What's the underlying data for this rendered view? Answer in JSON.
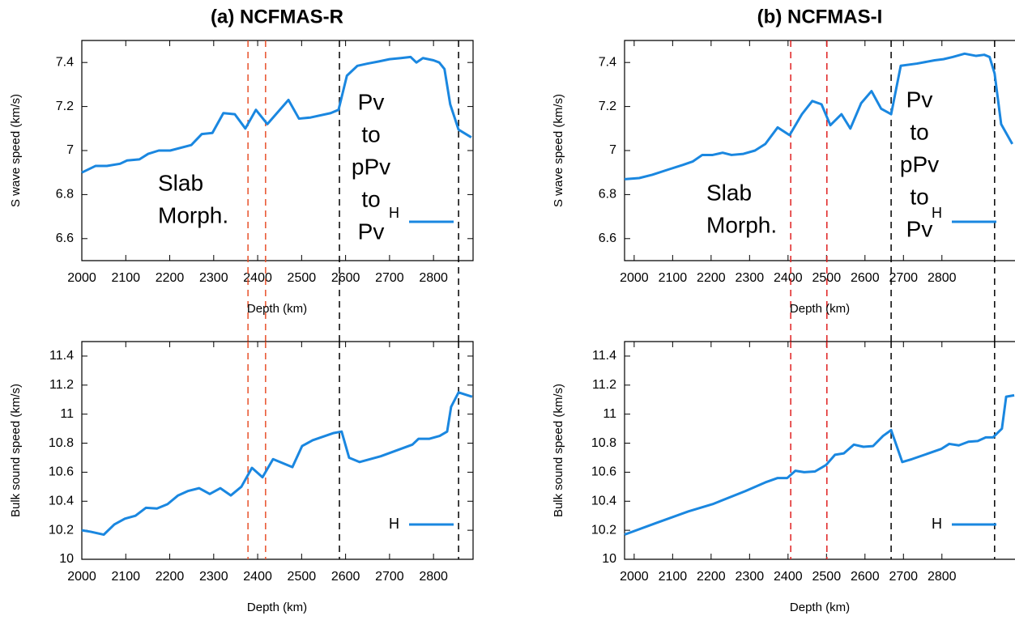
{
  "chart_data": [
    {
      "type": "line",
      "title": "(a) NCFMAS-R",
      "xlabel": "Depth (km)",
      "ylabel": "S wave speed (km/s)",
      "x": [
        2000,
        2031,
        2057,
        2087,
        2103,
        2131,
        2151,
        2175,
        2201,
        2249,
        2273,
        2297,
        2322,
        2348,
        2372,
        2396,
        2422,
        2470,
        2494,
        2520,
        2566,
        2584,
        2603,
        2627,
        2650,
        2676,
        2700,
        2726,
        2748,
        2761,
        2776,
        2800,
        2813,
        2825,
        2838,
        2857,
        2886
      ],
      "series": [
        {
          "name": "H",
          "color": "#1a87e0",
          "values": [
            6.9,
            6.93,
            6.93,
            6.94,
            6.955,
            6.96,
            6.985,
            7.0,
            7.0,
            7.025,
            7.075,
            7.08,
            7.17,
            7.165,
            7.1,
            7.185,
            7.12,
            7.23,
            7.145,
            7.15,
            7.17,
            7.185,
            7.34,
            7.385,
            7.395,
            7.405,
            7.415,
            7.42,
            7.425,
            7.4,
            7.42,
            7.41,
            7.4,
            7.37,
            7.21,
            7.095,
            7.06
          ]
        }
      ],
      "xlim": [
        2000,
        2890
      ],
      "ylim": [
        6.5,
        7.5
      ],
      "xticks": [
        2000,
        2100,
        2200,
        2300,
        2400,
        2500,
        2600,
        2700,
        2800
      ],
      "yticks": [
        6.6,
        6.8,
        7,
        7.2,
        7.4
      ],
      "vlines": [
        {
          "x": 2378,
          "color": "#e8502a"
        },
        {
          "x": 2418,
          "color": "#e8502a"
        },
        {
          "x": 2586,
          "color": "#000000"
        },
        {
          "x": 2857,
          "color": "#000000"
        }
      ],
      "annotations": [
        {
          "lines": [
            "Slab",
            "Morph."
          ]
        },
        {
          "lines": [
            "Pv",
            "to",
            "pPv",
            "to",
            "Pv"
          ]
        }
      ],
      "legend": "lower right"
    },
    {
      "type": "line",
      "xlabel": "Depth (km)",
      "ylabel": "Bulk sound speed (km/s)",
      "x": [
        2000,
        2020,
        2050,
        2074,
        2098,
        2122,
        2146,
        2171,
        2195,
        2219,
        2241,
        2267,
        2291,
        2315,
        2339,
        2363,
        2387,
        2411,
        2435,
        2479,
        2501,
        2525,
        2573,
        2591,
        2608,
        2632,
        2680,
        2752,
        2766,
        2790,
        2814,
        2831,
        2840,
        2857,
        2888
      ],
      "series": [
        {
          "name": "H",
          "color": "#1a87e0",
          "values": [
            10.2,
            10.19,
            10.17,
            10.24,
            10.28,
            10.3,
            10.355,
            10.35,
            10.38,
            10.44,
            10.47,
            10.49,
            10.45,
            10.49,
            10.44,
            10.5,
            10.63,
            10.565,
            10.69,
            10.635,
            10.78,
            10.82,
            10.87,
            10.88,
            10.7,
            10.67,
            10.71,
            10.79,
            10.83,
            10.83,
            10.85,
            10.88,
            11.05,
            11.15,
            11.12
          ]
        }
      ],
      "xlim": [
        2000,
        2890
      ],
      "ylim": [
        10,
        11.5
      ],
      "xticks": [
        2000,
        2100,
        2200,
        2300,
        2400,
        2500,
        2600,
        2700,
        2800
      ],
      "yticks": [
        10,
        10.2,
        10.4,
        10.6,
        10.8,
        11,
        11.2,
        11.4
      ],
      "vlines": [
        {
          "x": 2378,
          "color": "#e8502a"
        },
        {
          "x": 2418,
          "color": "#e8502a"
        },
        {
          "x": 2586,
          "color": "#000000"
        },
        {
          "x": 2857,
          "color": "#000000"
        }
      ],
      "legend": "lower right"
    },
    {
      "type": "line",
      "title": "(b) NCFMAS-I",
      "xlabel": "Depth (km)",
      "ylabel": "S wave speed (km/s)",
      "x": [
        1975,
        2013,
        2047,
        2091,
        2127,
        2152,
        2177,
        2204,
        2230,
        2253,
        2284,
        2314,
        2341,
        2373,
        2404,
        2436,
        2463,
        2487,
        2510,
        2539,
        2562,
        2590,
        2617,
        2642,
        2668,
        2693,
        2735,
        2781,
        2804,
        2828,
        2859,
        2889,
        2910,
        2924,
        2937,
        2954,
        2983
      ],
      "series": [
        {
          "name": "H",
          "color": "#1a87e0",
          "values": [
            6.87,
            6.875,
            6.89,
            6.915,
            6.935,
            6.95,
            6.98,
            6.98,
            6.99,
            6.98,
            6.985,
            7.0,
            7.03,
            7.105,
            7.07,
            7.165,
            7.225,
            7.21,
            7.115,
            7.165,
            7.1,
            7.215,
            7.27,
            7.19,
            7.165,
            7.385,
            7.395,
            7.41,
            7.415,
            7.425,
            7.44,
            7.43,
            7.435,
            7.425,
            7.35,
            7.12,
            7.03
          ]
        }
      ],
      "xlim": [
        1975,
        2990
      ],
      "ylim": [
        6.5,
        7.5
      ],
      "xticks": [
        2000,
        2100,
        2200,
        2300,
        2400,
        2500,
        2600,
        2700,
        2800
      ],
      "yticks": [
        6.6,
        6.8,
        7,
        7.2,
        7.4
      ],
      "vlines": [
        {
          "x": 2407,
          "color": "#e02020"
        },
        {
          "x": 2501,
          "color": "#e02020"
        },
        {
          "x": 2668,
          "color": "#000000"
        },
        {
          "x": 2937,
          "color": "#000000"
        }
      ],
      "annotations": [
        {
          "lines": [
            "Slab",
            "Morph."
          ]
        },
        {
          "lines": [
            "Pv",
            "to",
            "pPv",
            "to",
            "Pv"
          ]
        }
      ],
      "legend": "lower right"
    },
    {
      "type": "line",
      "xlabel": "Depth (km)",
      "ylabel": "Bulk sound speed (km/s)",
      "x": [
        1975,
        2057,
        2141,
        2204,
        2289,
        2341,
        2373,
        2398,
        2419,
        2442,
        2470,
        2499,
        2522,
        2545,
        2571,
        2596,
        2621,
        2647,
        2668,
        2697,
        2722,
        2798,
        2819,
        2844,
        2869,
        2893,
        2914,
        2933,
        2956,
        2967,
        2988
      ],
      "series": [
        {
          "name": "H",
          "color": "#1a87e0",
          "values": [
            10.17,
            10.25,
            10.33,
            10.38,
            10.47,
            10.53,
            10.56,
            10.56,
            10.61,
            10.6,
            10.605,
            10.65,
            10.72,
            10.73,
            10.79,
            10.775,
            10.78,
            10.85,
            10.89,
            10.67,
            10.69,
            10.76,
            10.795,
            10.785,
            10.81,
            10.815,
            10.84,
            10.84,
            10.9,
            11.12,
            11.13
          ]
        }
      ],
      "xlim": [
        1975,
        2990
      ],
      "ylim": [
        10,
        11.5
      ],
      "xticks": [
        2000,
        2100,
        2200,
        2300,
        2400,
        2500,
        2600,
        2700,
        2800
      ],
      "yticks": [
        10,
        10.2,
        10.4,
        10.6,
        10.8,
        11,
        11.2,
        11.4
      ],
      "vlines": [
        {
          "x": 2407,
          "color": "#e02020"
        },
        {
          "x": 2501,
          "color": "#e02020"
        },
        {
          "x": 2668,
          "color": "#000000"
        },
        {
          "x": 2937,
          "color": "#000000"
        }
      ],
      "legend": "lower right"
    }
  ]
}
